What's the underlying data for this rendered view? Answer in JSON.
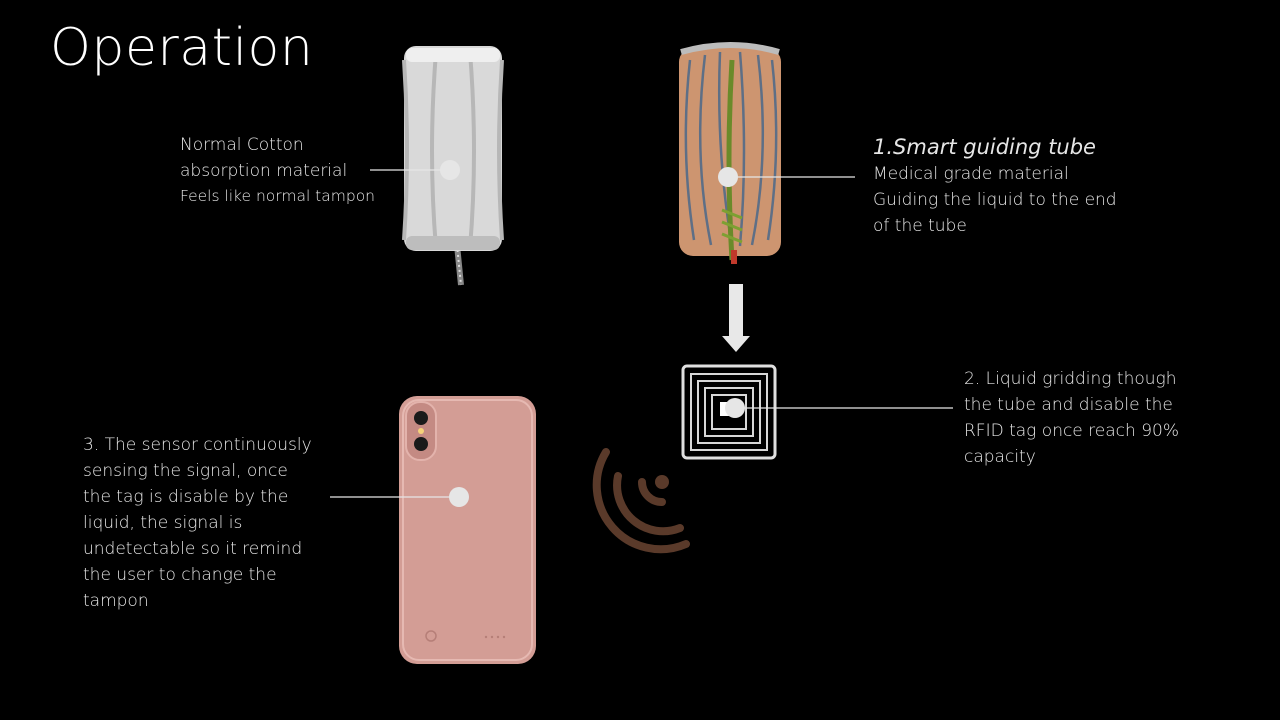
{
  "title": "Operation",
  "labels": {
    "cotton": {
      "line1": "Normal Cotton",
      "line2": "absorption material",
      "line3": "Feels like normal tampon"
    },
    "tube": {
      "heading": "1.Smart guiding tube",
      "line1": "Medical grade material",
      "line2": "Guiding the liquid to the end",
      "line3": "of the tube"
    },
    "rfid": {
      "line1": "2. Liquid gridding though",
      "line2": "the tube and disable the",
      "line3": "RFID tag once reach 90%",
      "line4": "capacity"
    },
    "sensor": {
      "line1": "3. The sensor continuously",
      "line2": "sensing the signal, once",
      "line3": "the tag is disable by the",
      "line4": "liquid, the signal is",
      "line5": "undetectable so it remind",
      "line6": "the user to change the",
      "line7": "tampon"
    }
  },
  "colors": {
    "background": "#000000",
    "text": "#e6e6e6",
    "phone": "#d39d95",
    "signal": "#5a3a2a",
    "tube_fill": "#e3a57c",
    "tube_line": "#6b7f97",
    "guide": "#6a8a2a"
  },
  "icons": [
    "tampon-white",
    "tampon-cutaway",
    "down-arrow",
    "rfid-tag",
    "phone",
    "signal-waves"
  ]
}
